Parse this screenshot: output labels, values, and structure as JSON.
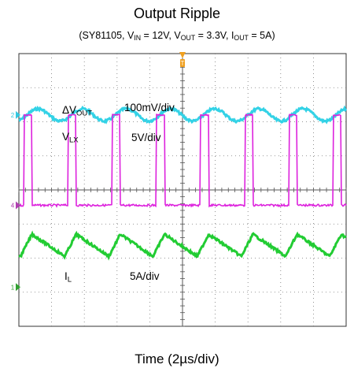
{
  "title": "Output Ripple",
  "subtitle": {
    "part": "(SY81105, V",
    "vin_sub": "IN",
    "vin_val": " = 12V, V",
    "vout_sub": "OUT",
    "vout_val": " = 3.3V, I",
    "iout_sub": "OUT",
    "iout_val": " = 5A)"
  },
  "xlabel": "Time (2µs/div)",
  "annotations": {
    "dvout_main": "ΔV",
    "dvout_sub": "OUT",
    "dvout_scale": "100mV/div",
    "vlx_main": "V",
    "vlx_sub": "LX",
    "vlx_scale": "5V/div",
    "il_main": "I",
    "il_sub": "L",
    "il_scale": "5A/div"
  },
  "markers": {
    "trigger": "T",
    "ch2": "2",
    "ch4": "4",
    "ch1": "1"
  },
  "colors": {
    "ripple": "#33d2e6",
    "switch": "#dd22dd",
    "current": "#22cc33",
    "marker_trigger": "#f0a020",
    "marker_ch4": "#b040b0",
    "marker_ch1": "#30a030",
    "marker_ch2": "#33c8e0",
    "grid": "#777777"
  },
  "chart_data": {
    "type": "line",
    "title": "Output Ripple",
    "xlabel": "Time (2µs/div)",
    "x_divisions": 10,
    "y_divisions": 8,
    "grid": true,
    "switching_period_div": 1.35,
    "series": [
      {
        "name": "ΔVOUT",
        "scale": "100mV/div",
        "waveform": "sine",
        "amplitude_div": 0.18,
        "period_div": 1.35,
        "baseline_div": 6.2
      },
      {
        "name": "VLX",
        "scale": "5V/div",
        "waveform": "pulse",
        "high_div": 6.2,
        "low_div": 3.55,
        "rising_edges_div": [
          0.15,
          1.5,
          2.85,
          4.2,
          5.55,
          6.9,
          8.25,
          9.6
        ],
        "high_width_div": 0.25
      },
      {
        "name": "IL",
        "scale": "5A/div",
        "waveform": "triangle",
        "peak_div": 2.7,
        "valley_div": 2.05,
        "period_div": 1.35,
        "peaks_div": [
          0.4,
          1.75,
          3.1,
          4.45,
          5.8,
          7.15,
          8.5,
          9.85
        ]
      }
    ]
  }
}
